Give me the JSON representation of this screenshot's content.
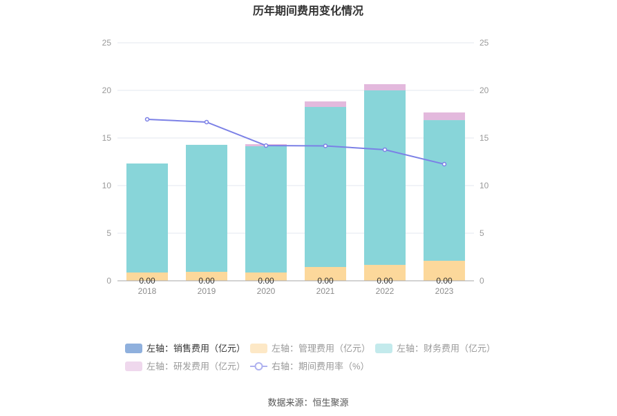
{
  "chart_data": {
    "type": "bar",
    "title": "历年期间费用变化情况",
    "categories": [
      "2018",
      "2019",
      "2020",
      "2021",
      "2022",
      "2023"
    ],
    "stacked": true,
    "y_left": {
      "ylim": [
        0,
        25
      ],
      "ticks": [
        0,
        5,
        10,
        15,
        20,
        25
      ]
    },
    "y_right": {
      "ylim": [
        0,
        25
      ],
      "ticks": [
        0,
        5,
        10,
        15,
        20,
        25
      ]
    },
    "grid": true,
    "legend_position": "bottom",
    "series": [
      {
        "name": "左轴：销售费用（亿元）",
        "type": "bar",
        "axis": "left",
        "values": [
          0,
          0,
          0,
          0,
          0,
          0
        ],
        "color": "#8fb0dd",
        "legend_color": "#8fb0dd",
        "legend_text_color": "#333333",
        "data_labels": true
      },
      {
        "name": "左轴：管理费用（亿元）",
        "type": "bar",
        "axis": "left",
        "values": [
          0.87,
          0.94,
          0.87,
          1.45,
          1.67,
          2.1
        ],
        "color": "#fcd89b",
        "legend_color": "#fde8c6",
        "legend_text_color": "#999999"
      },
      {
        "name": "左轴：财务费用（亿元）",
        "type": "bar",
        "axis": "left",
        "values": [
          11.45,
          13.34,
          13.26,
          16.81,
          18.33,
          14.78
        ],
        "color": "#88d5d9",
        "legend_color": "#c3eaec",
        "legend_text_color": "#999999"
      },
      {
        "name": "左轴：研发费用（亿元）",
        "type": "bar",
        "axis": "left",
        "values": [
          0,
          0,
          0.22,
          0.58,
          0.65,
          0.8
        ],
        "color": "#e3b9dd",
        "legend_color": "#efd8ed",
        "legend_text_color": "#999999"
      },
      {
        "name": "右轴：期间费用率（%）",
        "type": "line",
        "axis": "right",
        "values": [
          16.96,
          16.67,
          14.2,
          14.17,
          13.77,
          12.25
        ],
        "color": "#7b80e6",
        "legend_color": "#aeb1ef",
        "legend_text_color": "#999999"
      }
    ]
  },
  "source": "数据来源：恒生聚源"
}
